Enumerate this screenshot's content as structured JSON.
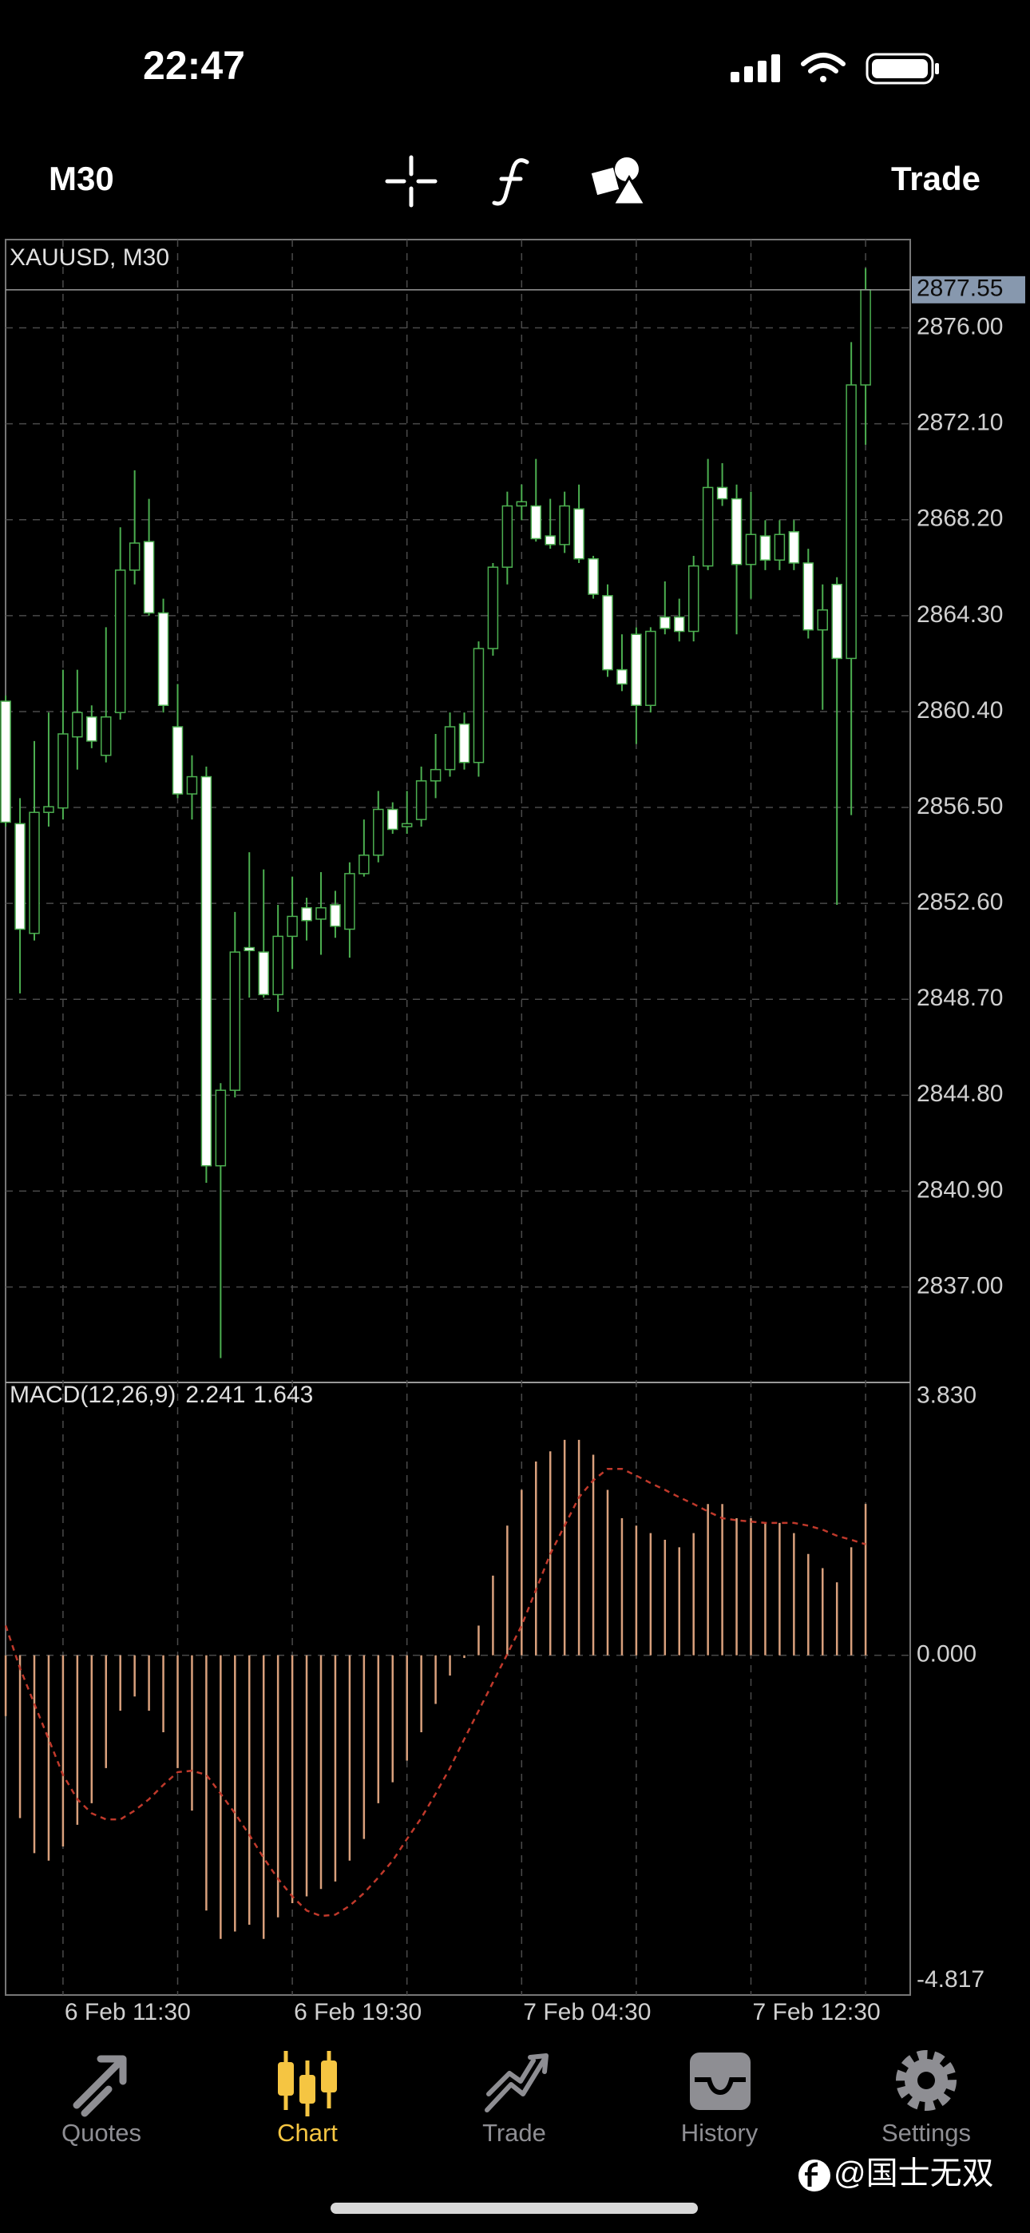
{
  "status_bar": {
    "time": "22:47"
  },
  "toolbar": {
    "timeframe": "M30",
    "trade": "Trade"
  },
  "chart_data": [
    {
      "type": "candlestick",
      "title": "XAUUSD, M30",
      "categories": [
        null,
        null,
        null,
        null,
        "6 Feb 11:30",
        null,
        null,
        null,
        null,
        null,
        null,
        null,
        null,
        null,
        null,
        null,
        null,
        null,
        null,
        null,
        "6 Feb 19:30",
        null,
        null,
        null,
        null,
        null,
        null,
        null,
        null,
        null,
        null,
        null,
        null,
        null,
        null,
        null,
        "7 Feb 04:30",
        null,
        null,
        null,
        null,
        null,
        null,
        null,
        null,
        null,
        null,
        null,
        null,
        null,
        null,
        null,
        "7 Feb 12:30",
        null,
        null,
        null,
        null,
        null,
        null,
        null,
        null
      ],
      "open": [
        2860.82,
        2855.84,
        2851.38,
        2856.3,
        2856.48,
        2859.37,
        2860.18,
        2858.62,
        2860.36,
        2866.15,
        2867.31,
        2864.41,
        2859.78,
        2857.05,
        2857.75,
        2841.93,
        2845.0,
        2850.8,
        2850.62,
        2848.89,
        2851.26,
        2852.42,
        2851.96,
        2852.54,
        2851.55,
        2853.81,
        2854.56,
        2856.42,
        2855.72,
        2856.01,
        2857.58,
        2858.04,
        2859.89,
        2858.33,
        2862.96,
        2866.27,
        2868.76,
        2868.76,
        2867.54,
        2867.19,
        2868.64,
        2866.61,
        2865.11,
        2862.1,
        2863.54,
        2860.65,
        2864.24,
        2864.24,
        2863.66,
        2866.32,
        2869.51,
        2869.05,
        2866.38,
        2867.54,
        2866.56,
        2867.71,
        2866.44,
        2863.72,
        2865.57,
        2862.56,
        2873.68
      ],
      "high": [
        2861.05,
        2856.88,
        2859.2,
        2860.36,
        2862.1,
        2862.1,
        2860.65,
        2863.83,
        2867.89,
        2870.21,
        2869.05,
        2864.99,
        2861.52,
        2858.62,
        2858.16,
        2845.29,
        2852.25,
        2854.68,
        2853.98,
        2852.54,
        2853.69,
        2852.83,
        2853.87,
        2853.11,
        2854.27,
        2856.01,
        2857.17,
        2856.71,
        2857.17,
        2858.16,
        2859.49,
        2860.36,
        2860.36,
        2863.25,
        2866.44,
        2869.34,
        2869.63,
        2870.67,
        2869.05,
        2869.34,
        2869.63,
        2866.73,
        2865.57,
        2863.54,
        2863.83,
        2863.83,
        2865.69,
        2864.99,
        2866.73,
        2870.67,
        2870.5,
        2869.63,
        2869.34,
        2868.18,
        2868.18,
        2868.18,
        2867.02,
        2865.57,
        2865.86,
        2875.42,
        2878.43
      ],
      "low": [
        2855.72,
        2848.94,
        2851.09,
        2855.72,
        2856.01,
        2858.04,
        2858.91,
        2858.33,
        2860.07,
        2865.57,
        2864.3,
        2860.36,
        2856.88,
        2856.01,
        2841.24,
        2834.11,
        2844.71,
        2848.77,
        2848.77,
        2848.19,
        2849.93,
        2851.09,
        2850.51,
        2851.2,
        2850.39,
        2853.69,
        2854.27,
        2855.43,
        2855.43,
        2855.72,
        2856.88,
        2857.75,
        2858.04,
        2857.75,
        2862.67,
        2865.57,
        2868.18,
        2867.31,
        2867.02,
        2866.85,
        2866.44,
        2864.99,
        2861.81,
        2861.23,
        2859.08,
        2860.36,
        2863.54,
        2863.25,
        2863.25,
        2866.15,
        2868.76,
        2863.54,
        2864.99,
        2866.15,
        2866.15,
        2866.15,
        2863.37,
        2860.47,
        2852.54,
        2856.19,
        2871.25
      ],
      "close": [
        2855.9,
        2851.55,
        2856.3,
        2856.53,
        2859.49,
        2860.36,
        2859.2,
        2860.18,
        2866.15,
        2867.25,
        2864.41,
        2860.65,
        2857.05,
        2857.75,
        2841.93,
        2845.0,
        2850.62,
        2850.68,
        2848.89,
        2851.26,
        2852.07,
        2851.9,
        2852.42,
        2851.67,
        2853.81,
        2854.56,
        2856.42,
        2855.61,
        2855.84,
        2857.58,
        2858.04,
        2859.78,
        2858.33,
        2862.96,
        2866.27,
        2868.76,
        2868.93,
        2867.43,
        2867.19,
        2868.76,
        2866.61,
        2865.17,
        2862.1,
        2861.52,
        2860.65,
        2863.66,
        2863.78,
        2863.66,
        2866.32,
        2869.51,
        2869.05,
        2866.38,
        2867.6,
        2866.56,
        2867.6,
        2866.44,
        2863.72,
        2864.53,
        2862.56,
        2873.68,
        2877.55
      ],
      "bull_color": "#4caf50",
      "bear_color": "#ffffff",
      "ylim": [
        2833.12,
        2879.59
      ],
      "yticks": [
        {
          "value": 2837,
          "label": "2837.00"
        },
        {
          "value": 2840.9,
          "label": "2840.90"
        },
        {
          "value": 2844.8,
          "label": "2844.80"
        },
        {
          "value": 2848.7,
          "label": "2848.70"
        },
        {
          "value": 2852.6,
          "label": "2852.60"
        },
        {
          "value": 2856.5,
          "label": "2856.50"
        },
        {
          "value": 2860.4,
          "label": "2860.40"
        },
        {
          "value": 2864.3,
          "label": "2864.30"
        },
        {
          "value": 2868.2,
          "label": "2868.20"
        },
        {
          "value": 2872.1,
          "label": "2872.10"
        },
        {
          "value": 2876,
          "label": "2876.00"
        }
      ],
      "grid": true
    },
    {
      "type": "macd",
      "title": "MACD(12,26,9)",
      "histogram": [
        -0.9,
        -2.41,
        -2.93,
        -3.04,
        -2.83,
        -2.51,
        -2.19,
        -1.67,
        -0.82,
        -0.61,
        -0.82,
        -1.14,
        -1.67,
        -2.3,
        -3.78,
        -4.2,
        -4.09,
        -3.99,
        -4.2,
        -3.88,
        -3.67,
        -3.57,
        -3.46,
        -3.35,
        -3.04,
        -2.72,
        -2.19,
        -1.88,
        -1.56,
        -1.14,
        -0.72,
        -0.3,
        -0.04,
        0.44,
        1.18,
        1.92,
        2.45,
        2.87,
        3.02,
        3.19,
        3.19,
        2.97,
        2.45,
        2.03,
        1.92,
        1.81,
        1.71,
        1.6,
        1.81,
        2.24,
        2.24,
        2.03,
        2.03,
        1.96,
        1.96,
        1.81,
        1.5,
        1.29,
        1.08,
        1.6,
        2.241
      ],
      "signal": [
        0.44,
        -0.19,
        -0.72,
        -1.24,
        -1.77,
        -2.13,
        -2.34,
        -2.43,
        -2.43,
        -2.3,
        -2.13,
        -1.92,
        -1.73,
        -1.71,
        -1.77,
        -2.05,
        -2.34,
        -2.66,
        -3.0,
        -3.31,
        -3.57,
        -3.78,
        -3.86,
        -3.84,
        -3.71,
        -3.52,
        -3.29,
        -3.04,
        -2.72,
        -2.41,
        -2.05,
        -1.67,
        -1.24,
        -0.82,
        -0.4,
        0.02,
        0.44,
        0.97,
        1.5,
        1.92,
        2.34,
        2.59,
        2.76,
        2.76,
        2.66,
        2.55,
        2.45,
        2.34,
        2.24,
        2.13,
        2.03,
        2.0,
        1.98,
        1.96,
        1.96,
        1.96,
        1.92,
        1.86,
        1.77,
        1.71,
        1.643
      ],
      "histogram_color": "#d9a07c",
      "signal_color": "#c0392b",
      "ylim": [
        -5.03,
        4.04
      ],
      "yticks": [
        {
          "value": 3.83,
          "label": "3.830"
        },
        {
          "value": 0,
          "label": "0.000"
        },
        {
          "value": -4.817,
          "label": "-4.817"
        }
      ],
      "grid": true
    }
  ],
  "tab_bar": {
    "tabs": [
      "Quotes",
      "Chart",
      "Trade",
      "History",
      "Settings"
    ],
    "active_tab": 1,
    "active_color": "#f5c542",
    "inactive_color": "#8e8e93"
  },
  "watermark": "@国士无双"
}
